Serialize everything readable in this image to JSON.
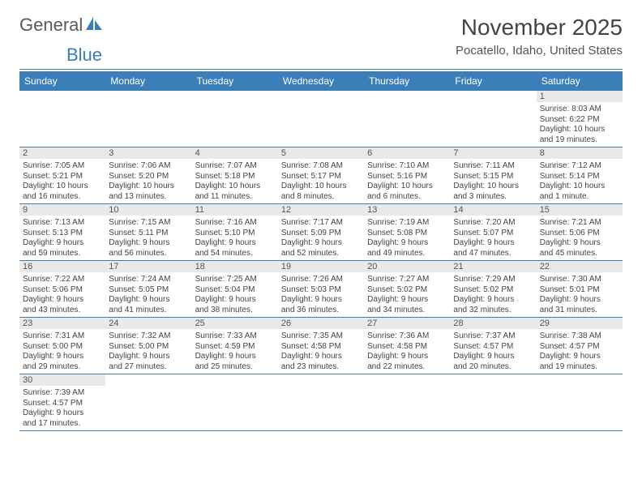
{
  "logo": {
    "part1": "General",
    "part2": "Blue"
  },
  "title": "November 2025",
  "location": "Pocatello, Idaho, United States",
  "colors": {
    "header_bg": "#3a7fb8",
    "header_text": "#ffffff",
    "daynum_bg": "#e9e9e9",
    "text": "#444444",
    "rule": "#3a7fb8"
  },
  "day_headers": [
    "Sunday",
    "Monday",
    "Tuesday",
    "Wednesday",
    "Thursday",
    "Friday",
    "Saturday"
  ],
  "weeks": [
    [
      null,
      null,
      null,
      null,
      null,
      null,
      {
        "n": "1",
        "sr": "Sunrise: 8:03 AM",
        "ss": "Sunset: 6:22 PM",
        "dl1": "Daylight: 10 hours",
        "dl2": "and 19 minutes."
      }
    ],
    [
      {
        "n": "2",
        "sr": "Sunrise: 7:05 AM",
        "ss": "Sunset: 5:21 PM",
        "dl1": "Daylight: 10 hours",
        "dl2": "and 16 minutes."
      },
      {
        "n": "3",
        "sr": "Sunrise: 7:06 AM",
        "ss": "Sunset: 5:20 PM",
        "dl1": "Daylight: 10 hours",
        "dl2": "and 13 minutes."
      },
      {
        "n": "4",
        "sr": "Sunrise: 7:07 AM",
        "ss": "Sunset: 5:18 PM",
        "dl1": "Daylight: 10 hours",
        "dl2": "and 11 minutes."
      },
      {
        "n": "5",
        "sr": "Sunrise: 7:08 AM",
        "ss": "Sunset: 5:17 PM",
        "dl1": "Daylight: 10 hours",
        "dl2": "and 8 minutes."
      },
      {
        "n": "6",
        "sr": "Sunrise: 7:10 AM",
        "ss": "Sunset: 5:16 PM",
        "dl1": "Daylight: 10 hours",
        "dl2": "and 6 minutes."
      },
      {
        "n": "7",
        "sr": "Sunrise: 7:11 AM",
        "ss": "Sunset: 5:15 PM",
        "dl1": "Daylight: 10 hours",
        "dl2": "and 3 minutes."
      },
      {
        "n": "8",
        "sr": "Sunrise: 7:12 AM",
        "ss": "Sunset: 5:14 PM",
        "dl1": "Daylight: 10 hours",
        "dl2": "and 1 minute."
      }
    ],
    [
      {
        "n": "9",
        "sr": "Sunrise: 7:13 AM",
        "ss": "Sunset: 5:13 PM",
        "dl1": "Daylight: 9 hours",
        "dl2": "and 59 minutes."
      },
      {
        "n": "10",
        "sr": "Sunrise: 7:15 AM",
        "ss": "Sunset: 5:11 PM",
        "dl1": "Daylight: 9 hours",
        "dl2": "and 56 minutes."
      },
      {
        "n": "11",
        "sr": "Sunrise: 7:16 AM",
        "ss": "Sunset: 5:10 PM",
        "dl1": "Daylight: 9 hours",
        "dl2": "and 54 minutes."
      },
      {
        "n": "12",
        "sr": "Sunrise: 7:17 AM",
        "ss": "Sunset: 5:09 PM",
        "dl1": "Daylight: 9 hours",
        "dl2": "and 52 minutes."
      },
      {
        "n": "13",
        "sr": "Sunrise: 7:19 AM",
        "ss": "Sunset: 5:08 PM",
        "dl1": "Daylight: 9 hours",
        "dl2": "and 49 minutes."
      },
      {
        "n": "14",
        "sr": "Sunrise: 7:20 AM",
        "ss": "Sunset: 5:07 PM",
        "dl1": "Daylight: 9 hours",
        "dl2": "and 47 minutes."
      },
      {
        "n": "15",
        "sr": "Sunrise: 7:21 AM",
        "ss": "Sunset: 5:06 PM",
        "dl1": "Daylight: 9 hours",
        "dl2": "and 45 minutes."
      }
    ],
    [
      {
        "n": "16",
        "sr": "Sunrise: 7:22 AM",
        "ss": "Sunset: 5:06 PM",
        "dl1": "Daylight: 9 hours",
        "dl2": "and 43 minutes."
      },
      {
        "n": "17",
        "sr": "Sunrise: 7:24 AM",
        "ss": "Sunset: 5:05 PM",
        "dl1": "Daylight: 9 hours",
        "dl2": "and 41 minutes."
      },
      {
        "n": "18",
        "sr": "Sunrise: 7:25 AM",
        "ss": "Sunset: 5:04 PM",
        "dl1": "Daylight: 9 hours",
        "dl2": "and 38 minutes."
      },
      {
        "n": "19",
        "sr": "Sunrise: 7:26 AM",
        "ss": "Sunset: 5:03 PM",
        "dl1": "Daylight: 9 hours",
        "dl2": "and 36 minutes."
      },
      {
        "n": "20",
        "sr": "Sunrise: 7:27 AM",
        "ss": "Sunset: 5:02 PM",
        "dl1": "Daylight: 9 hours",
        "dl2": "and 34 minutes."
      },
      {
        "n": "21",
        "sr": "Sunrise: 7:29 AM",
        "ss": "Sunset: 5:02 PM",
        "dl1": "Daylight: 9 hours",
        "dl2": "and 32 minutes."
      },
      {
        "n": "22",
        "sr": "Sunrise: 7:30 AM",
        "ss": "Sunset: 5:01 PM",
        "dl1": "Daylight: 9 hours",
        "dl2": "and 31 minutes."
      }
    ],
    [
      {
        "n": "23",
        "sr": "Sunrise: 7:31 AM",
        "ss": "Sunset: 5:00 PM",
        "dl1": "Daylight: 9 hours",
        "dl2": "and 29 minutes."
      },
      {
        "n": "24",
        "sr": "Sunrise: 7:32 AM",
        "ss": "Sunset: 5:00 PM",
        "dl1": "Daylight: 9 hours",
        "dl2": "and 27 minutes."
      },
      {
        "n": "25",
        "sr": "Sunrise: 7:33 AM",
        "ss": "Sunset: 4:59 PM",
        "dl1": "Daylight: 9 hours",
        "dl2": "and 25 minutes."
      },
      {
        "n": "26",
        "sr": "Sunrise: 7:35 AM",
        "ss": "Sunset: 4:58 PM",
        "dl1": "Daylight: 9 hours",
        "dl2": "and 23 minutes."
      },
      {
        "n": "27",
        "sr": "Sunrise: 7:36 AM",
        "ss": "Sunset: 4:58 PM",
        "dl1": "Daylight: 9 hours",
        "dl2": "and 22 minutes."
      },
      {
        "n": "28",
        "sr": "Sunrise: 7:37 AM",
        "ss": "Sunset: 4:57 PM",
        "dl1": "Daylight: 9 hours",
        "dl2": "and 20 minutes."
      },
      {
        "n": "29",
        "sr": "Sunrise: 7:38 AM",
        "ss": "Sunset: 4:57 PM",
        "dl1": "Daylight: 9 hours",
        "dl2": "and 19 minutes."
      }
    ],
    [
      {
        "n": "30",
        "sr": "Sunrise: 7:39 AM",
        "ss": "Sunset: 4:57 PM",
        "dl1": "Daylight: 9 hours",
        "dl2": "and 17 minutes."
      },
      null,
      null,
      null,
      null,
      null,
      null
    ]
  ]
}
